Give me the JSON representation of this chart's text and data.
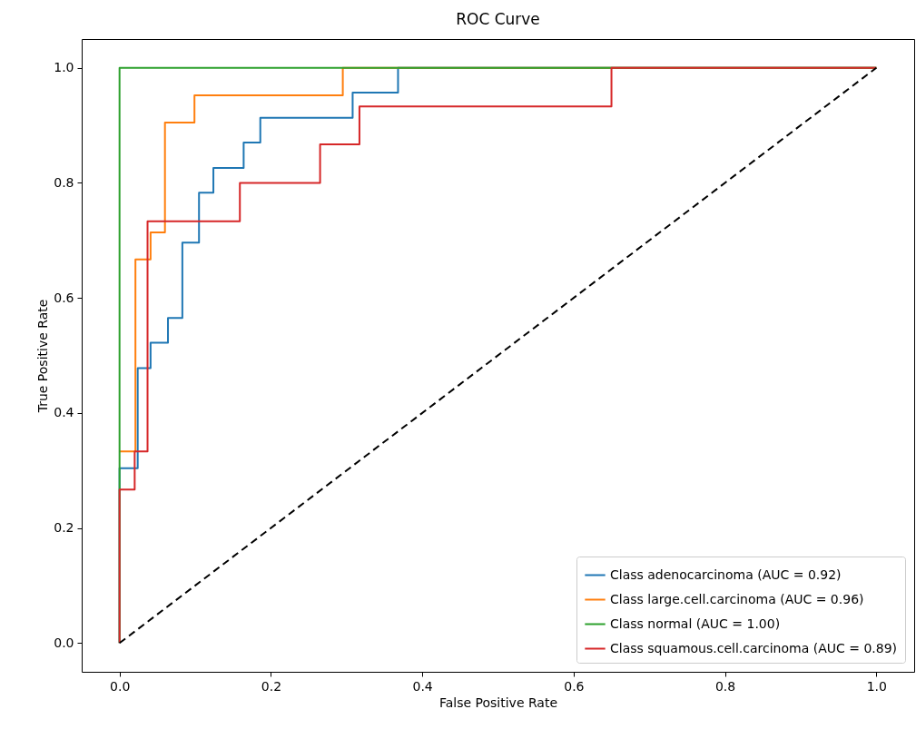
{
  "chart_data": {
    "type": "line",
    "title": "ROC Curve",
    "xlabel": "False Positive Rate",
    "ylabel": "True Positive Rate",
    "xlim": [
      -0.05,
      1.05
    ],
    "ylim": [
      -0.05,
      1.05
    ],
    "xticks": [
      {
        "value": 0,
        "label": "0.0"
      },
      0.2,
      0.4,
      0.6,
      0.8,
      {
        "value": 1,
        "label": "1.0"
      }
    ],
    "yticks": [
      {
        "value": 0,
        "label": "0.0"
      },
      0.2,
      0.4,
      0.6,
      0.8,
      {
        "value": 1,
        "label": "1.0"
      }
    ],
    "grid": false,
    "legend": "bottom right",
    "line_style": "solid",
    "series": [
      {
        "name": "Class adenocarcinoma (AUC = 0.92)",
        "color": "#1f77b4",
        "x": [
          0,
          0,
          0.024,
          0.024,
          0.041,
          0.041,
          0.064,
          0.064,
          0.083,
          0.083,
          0.105,
          0.105,
          0.124,
          0.124,
          0.164,
          0.164,
          0.186,
          0.186,
          0.308,
          0.308,
          0.368,
          0.368,
          1
        ],
        "values": [
          0,
          0.304,
          0.304,
          0.478,
          0.478,
          0.522,
          0.522,
          0.565,
          0.565,
          0.696,
          0.696,
          0.783,
          0.783,
          0.826,
          0.826,
          0.87,
          0.87,
          0.913,
          0.913,
          0.957,
          0.957,
          1,
          1
        ]
      },
      {
        "name": "Class large.cell.carcinoma (AUC = 0.96)",
        "color": "#ff7f0e",
        "x": [
          0,
          0.021,
          0.021,
          0.041,
          0.041,
          0.06,
          0.06,
          0.099,
          0.099,
          0.295,
          0.295,
          1
        ],
        "values": [
          0.333,
          0.333,
          0.667,
          0.667,
          0.714,
          0.714,
          0.905,
          0.905,
          0.952,
          0.952,
          1,
          1
        ]
      },
      {
        "name": "Class normal (AUC = 1.00)",
        "color": "#2ca02c",
        "x": [
          0,
          0,
          1
        ],
        "values": [
          0,
          1,
          1
        ]
      },
      {
        "name": "Class squamous.cell.carcinoma (AUC = 0.89)",
        "color": "#d62728",
        "x": [
          0,
          0,
          0.02,
          0.02,
          0.037,
          0.037,
          0.159,
          0.159,
          0.265,
          0.265,
          0.317,
          0.317,
          0.65,
          0.65,
          1
        ],
        "values": [
          0,
          0.267,
          0.267,
          0.333,
          0.333,
          0.733,
          0.733,
          0.8,
          0.8,
          0.867,
          0.867,
          0.933,
          0.933,
          1,
          1
        ]
      },
      {
        "color": "#000000",
        "line_style": "dashed",
        "x": [
          0,
          1
        ],
        "values": [
          0,
          1
        ]
      }
    ]
  }
}
